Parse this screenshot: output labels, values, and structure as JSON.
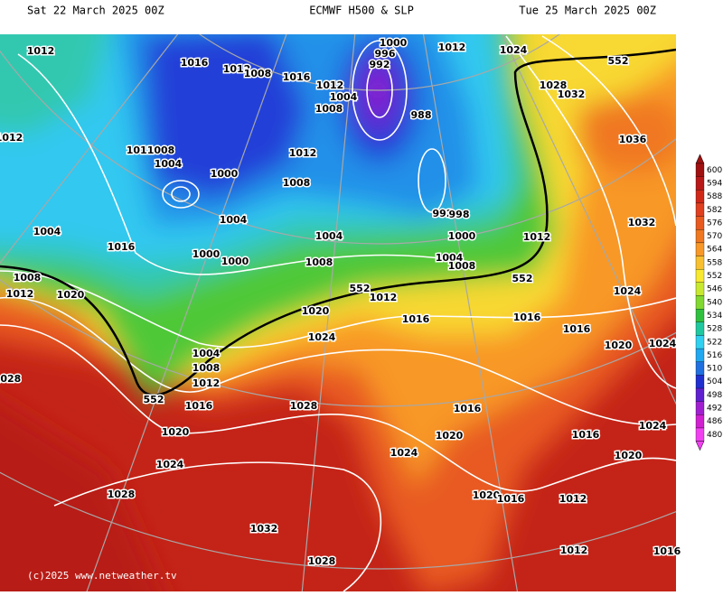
{
  "header": {
    "left": "Sat 22 March 2025 00Z",
    "center": "ECMWF H500 & SLP",
    "right": "Tue 25 March 2025 00Z"
  },
  "colorbar": {
    "labels": [
      "600",
      "594",
      "588",
      "582",
      "576",
      "570",
      "564",
      "558",
      "552",
      "546",
      "540",
      "534",
      "528",
      "522",
      "516",
      "510",
      "504",
      "498",
      "492",
      "486",
      "480"
    ],
    "colors": [
      "#a01010",
      "#b81818",
      "#d02818",
      "#e04020",
      "#e85a20",
      "#f07820",
      "#f89828",
      "#f8c030",
      "#f8e830",
      "#c8e830",
      "#80d830",
      "#30c040",
      "#20c8a0",
      "#30d0f0",
      "#20a8f0",
      "#2070e0",
      "#2030d0",
      "#6020d0",
      "#a020d0",
      "#d020d0",
      "#f040f0"
    ]
  },
  "isobar_labels": [
    "1012",
    "1016",
    "1012",
    "1008",
    "1016",
    "1000",
    "996",
    "992",
    "1012",
    "1024",
    "1012",
    "1004",
    "1008",
    "988",
    "1028",
    "1032",
    "1036",
    "1012",
    "1012",
    "1008",
    "1004",
    "1000",
    "1012",
    "1008",
    "1004",
    "1004",
    "1004",
    "992",
    "998",
    "1000",
    "1012",
    "1032",
    "1016",
    "1000",
    "1000",
    "1008",
    "1004",
    "1008",
    "1008",
    "1012",
    "1020",
    "1012",
    "1020",
    "1016",
    "1016",
    "1024",
    "1024",
    "1016",
    "1020",
    "1024",
    "1004",
    "1008",
    "1012",
    "1016",
    "1028",
    "1028",
    "1016",
    "1020",
    "1020",
    "1016",
    "1024",
    "1024",
    "1024",
    "1020",
    "1028",
    "1020",
    "1016",
    "1012",
    "1032",
    "1012",
    "1016",
    "1028",
    "552",
    "552",
    "552",
    "552"
  ],
  "copyright": "(c)2025 www.netweather.tv"
}
